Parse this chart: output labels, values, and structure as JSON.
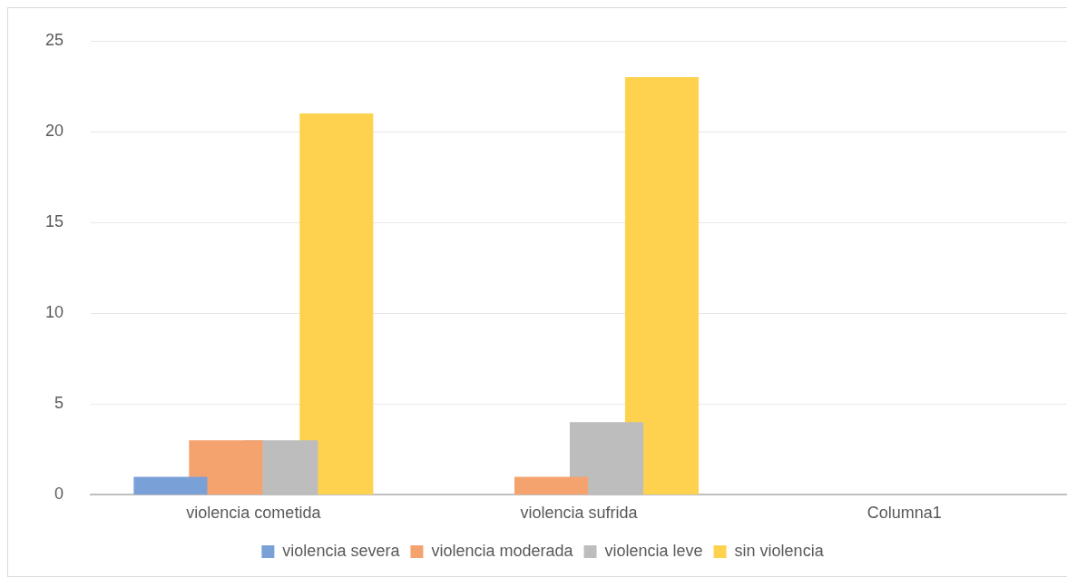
{
  "chart_data": {
    "type": "bar",
    "categories": [
      "violencia cometida",
      "violencia sufrida",
      "Columna1"
    ],
    "series": [
      {
        "name": "violencia severa",
        "color": "#7aa0d8",
        "values": [
          1,
          0,
          0
        ]
      },
      {
        "name": "violencia moderada",
        "color": "#f4a36f",
        "values": [
          3,
          1,
          0
        ]
      },
      {
        "name": "violencia leve",
        "color": "#bdbdbd",
        "values": [
          3,
          4,
          0
        ]
      },
      {
        "name": "sin violencia",
        "color": "#fed24f",
        "values": [
          21,
          23,
          0
        ]
      }
    ],
    "ylim": [
      0,
      25
    ],
    "yticks": [
      0,
      5,
      10,
      15,
      20,
      25
    ],
    "grid": "y",
    "legend": "bottom"
  }
}
